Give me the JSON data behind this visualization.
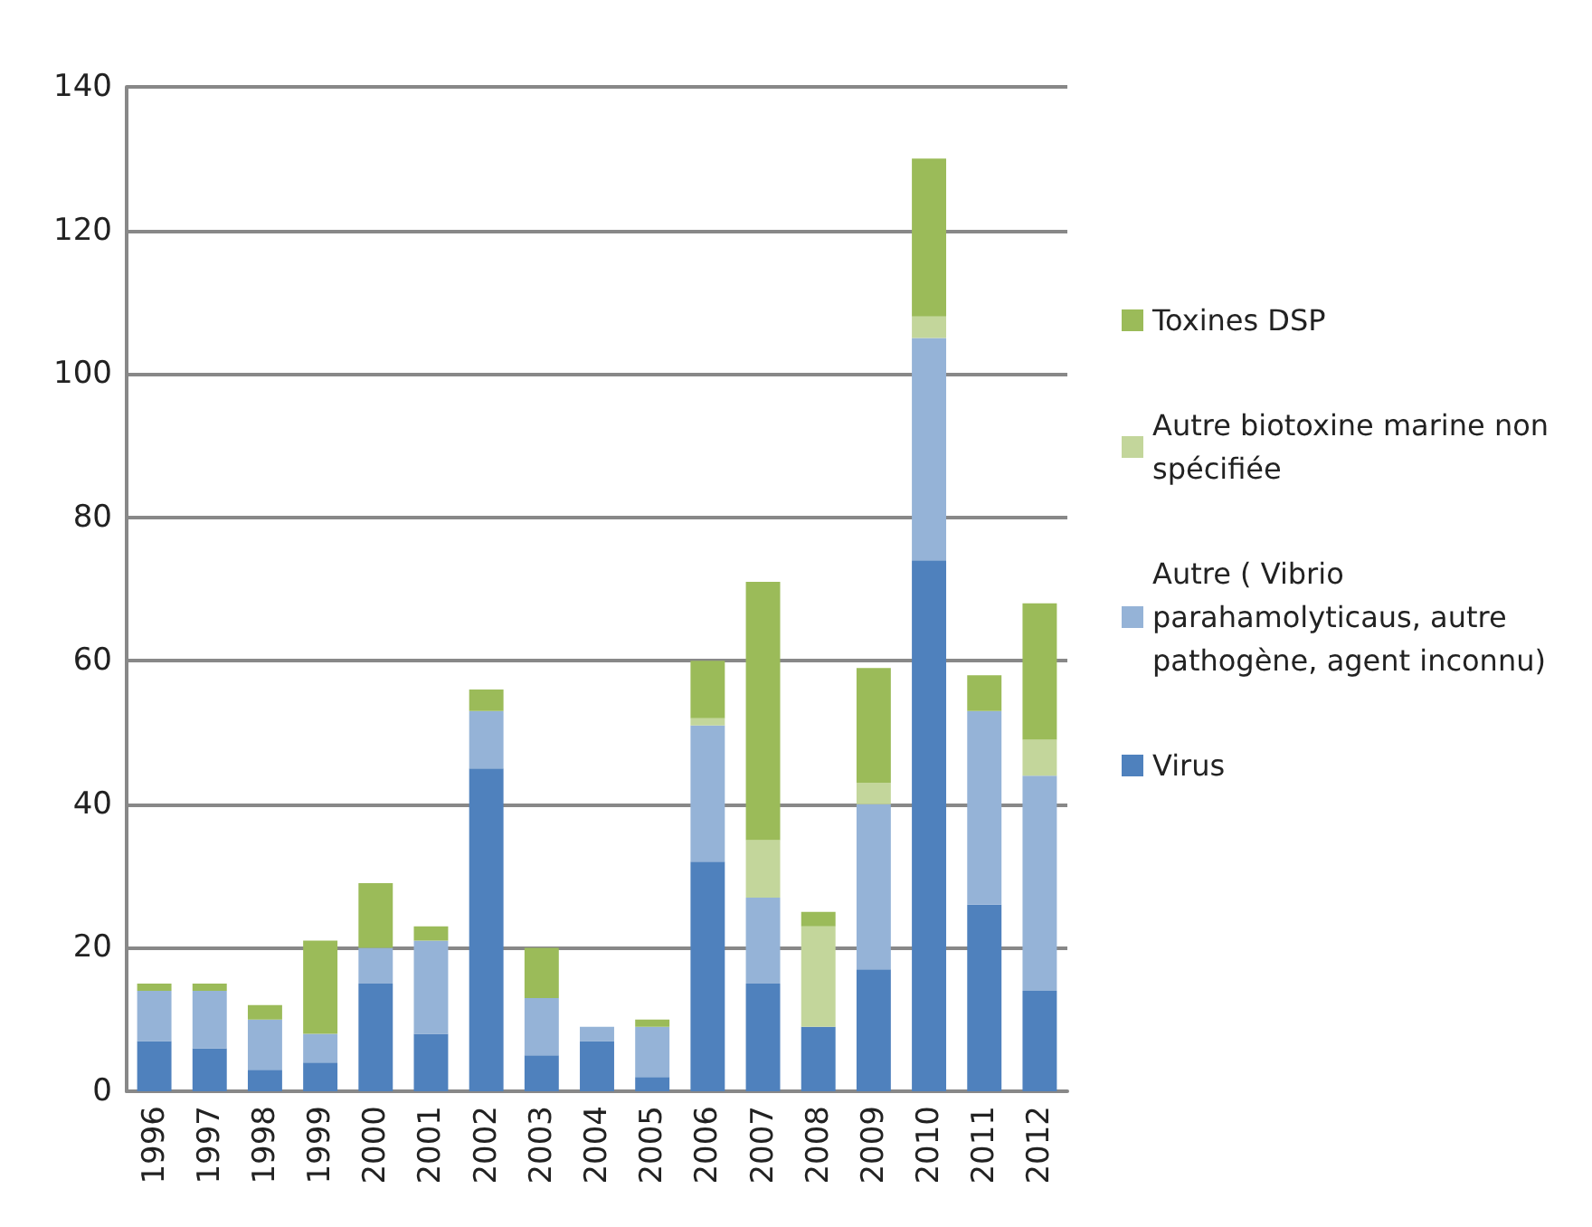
{
  "chart_data": {
    "type": "bar",
    "stacked": true,
    "categories": [
      "1996",
      "1997",
      "1998",
      "1999",
      "2000",
      "2001",
      "2002",
      "2003",
      "2004",
      "2005",
      "2006",
      "2007",
      "2008",
      "2009",
      "2010",
      "2011",
      "2012"
    ],
    "series": [
      {
        "name": "Virus",
        "color": "#4f81bd",
        "values": [
          7,
          6,
          3,
          4,
          15,
          8,
          45,
          5,
          7,
          2,
          32,
          15,
          9,
          17,
          74,
          26,
          14
        ]
      },
      {
        "name": "Autre ( Vibrio parahamolyticaus, autre pathogène, agent inconnu)",
        "color": "#95b3d7",
        "values": [
          7,
          8,
          7,
          4,
          5,
          13,
          8,
          8,
          2,
          7,
          19,
          12,
          0,
          23,
          31,
          27,
          30
        ]
      },
      {
        "name": "Autre biotoxine marine non spécifiée",
        "color": "#c3d69b",
        "values": [
          0,
          0,
          0,
          0,
          0,
          0,
          0,
          0,
          0,
          0,
          1,
          8,
          14,
          3,
          3,
          0,
          5
        ]
      },
      {
        "name": "Toxines DSP",
        "color": "#9bbb59",
        "values": [
          1,
          1,
          2,
          13,
          9,
          2,
          3,
          7,
          0,
          1,
          8,
          36,
          2,
          16,
          22,
          5,
          19
        ]
      }
    ],
    "ylim": [
      0,
      140
    ],
    "yticks": [
      0,
      20,
      40,
      60,
      80,
      100,
      120,
      140
    ],
    "grid": "y",
    "legend": "right"
  }
}
